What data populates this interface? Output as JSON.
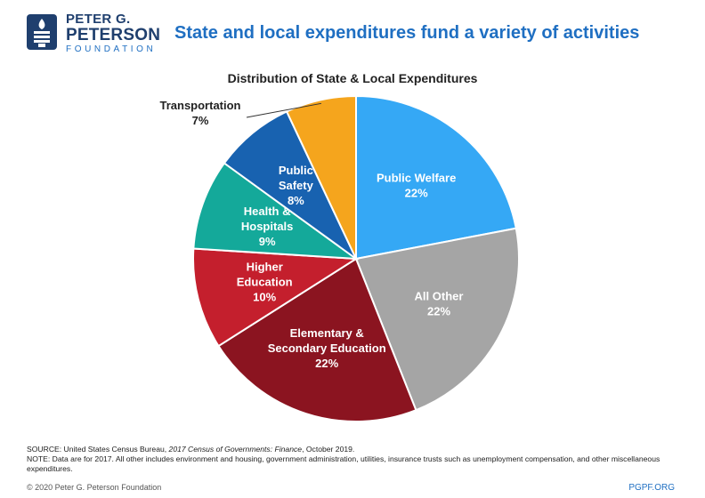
{
  "header": {
    "logo_line1": "PETER G.",
    "logo_line2": "PETERSON",
    "logo_line3": "FOUNDATION",
    "headline": "State and local expenditures fund a variety of activities"
  },
  "chart_data": {
    "type": "pie",
    "title": "Distribution of State & Local Expenditures",
    "slices": [
      {
        "name": "Public Welfare",
        "lines": [
          "Public Welfare"
        ],
        "pct_label": "22%",
        "value": 22,
        "color": "#35a8f5",
        "text_color": "#ffffff"
      },
      {
        "name": "All Other",
        "lines": [
          "All Other"
        ],
        "pct_label": "22%",
        "value": 22,
        "color": "#a5a5a5",
        "text_color": "#ffffff"
      },
      {
        "name": "Elementary & Secondary Education",
        "lines": [
          "Elementary &",
          "Secondary Education"
        ],
        "pct_label": "22%",
        "value": 22,
        "color": "#8b1420",
        "text_color": "#ffffff"
      },
      {
        "name": "Higher Education",
        "lines": [
          "Higher",
          "Education"
        ],
        "pct_label": "10%",
        "value": 10,
        "color": "#c41f2d",
        "text_color": "#ffffff"
      },
      {
        "name": "Health & Hospitals",
        "lines": [
          "Health &",
          "Hospitals"
        ],
        "pct_label": "9%",
        "value": 9,
        "color": "#14a99a",
        "text_color": "#ffffff"
      },
      {
        "name": "Public Safety",
        "lines": [
          "Public",
          "Safety"
        ],
        "pct_label": "8%",
        "value": 8,
        "color": "#1862b0",
        "text_color": "#ffffff"
      },
      {
        "name": "Transportation",
        "lines": [
          "Transportation"
        ],
        "pct_label": "7%",
        "value": 7,
        "color": "#f5a51d",
        "text_color": "#222222",
        "outside": true
      }
    ]
  },
  "footer": {
    "source_prefix": "SOURCE: United States Census Bureau, ",
    "source_italic": "2017 Census of Governments: Finance",
    "source_suffix": ", October 2019.",
    "note": "NOTE: Data are for 2017. All other includes environment and housing, government administration, utilities, insurance trusts such as unemployment compensation, and other miscellaneous expenditures.",
    "copyright": "© 2020 Peter G. Peterson Foundation",
    "site": "PGPF.ORG"
  }
}
